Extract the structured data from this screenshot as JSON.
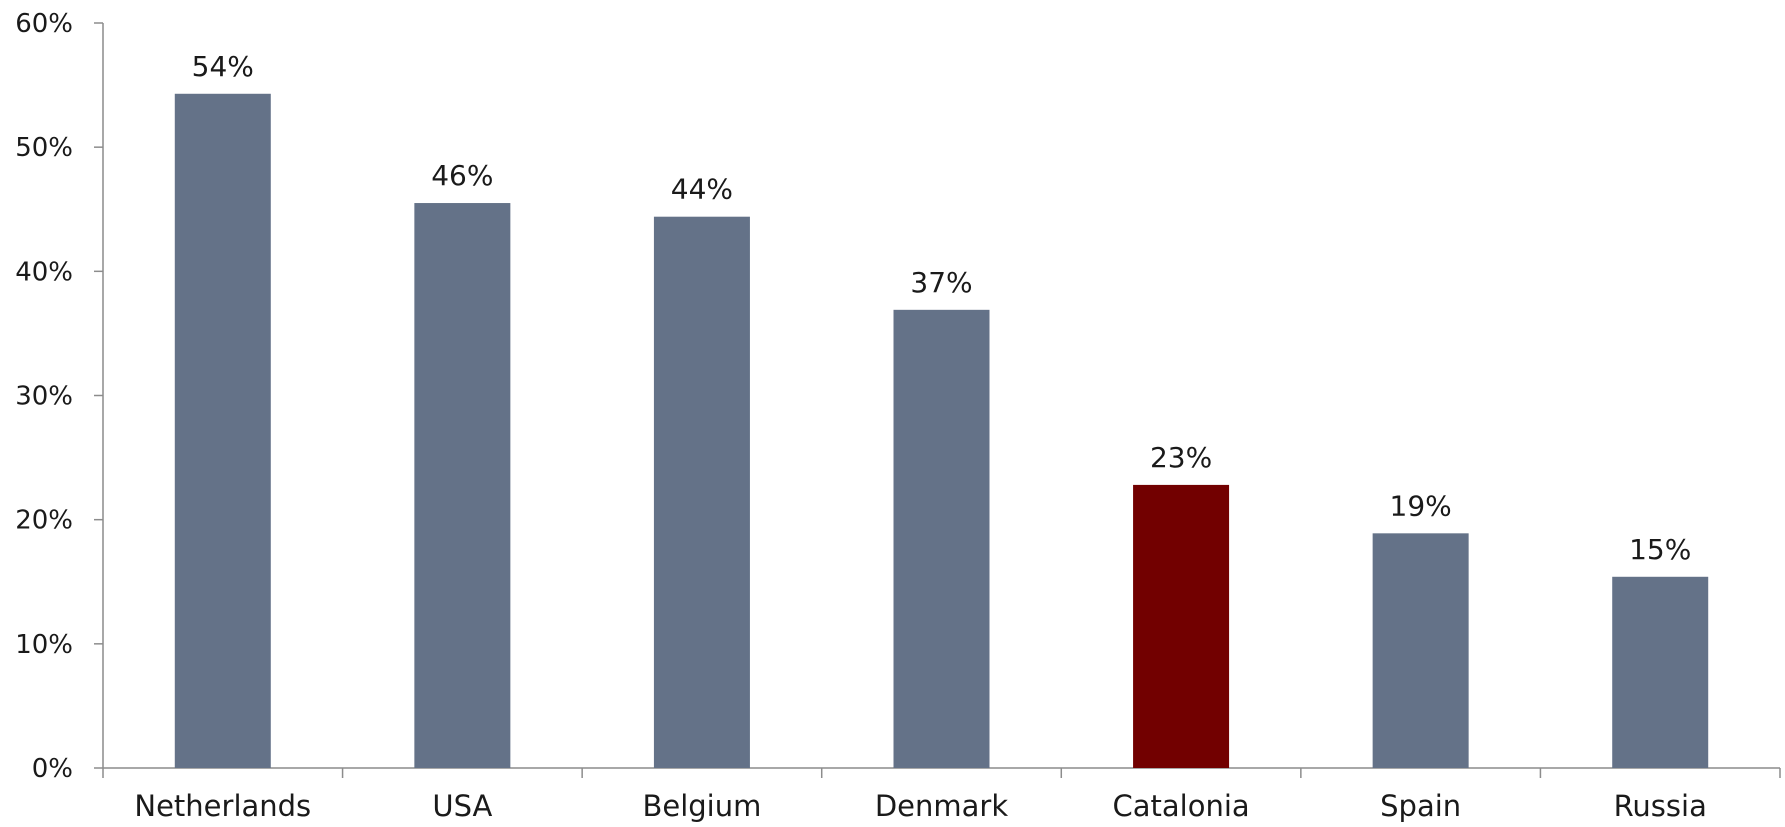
{
  "chart_data": {
    "type": "bar",
    "title": "",
    "xlabel": "",
    "ylabel": "",
    "categories": [
      "Netherlands",
      "USA",
      "Belgium",
      "Denmark",
      "Catalonia",
      "Spain",
      "Russia"
    ],
    "values": [
      54.3,
      45.5,
      44.4,
      36.9,
      22.8,
      18.9,
      15.4
    ],
    "value_labels": [
      "54%",
      "46%",
      "44%",
      "37%",
      "23%",
      "19%",
      "15%"
    ],
    "ylim": [
      0,
      60
    ],
    "yticks": [
      0,
      10,
      20,
      30,
      40,
      50,
      60
    ],
    "ytick_labels": [
      "0%",
      "10%",
      "20%",
      "30%",
      "40%",
      "50%",
      "60%"
    ],
    "grid": false,
    "legend": "none",
    "colors": {
      "default_bar": "#647288",
      "highlight_bar": "#720000",
      "axis": "#8c8c8c"
    },
    "highlight_category": "Catalonia"
  }
}
